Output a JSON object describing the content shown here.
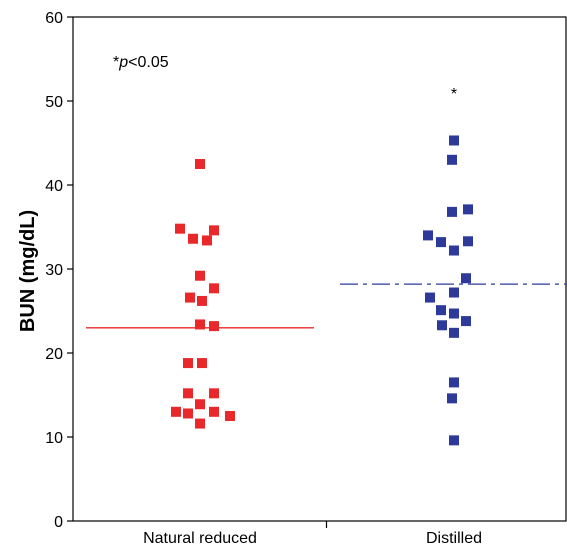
{
  "chart_data": {
    "type": "scatter",
    "ylabel": "BUN (mg/dL)",
    "ylim": [
      0,
      60
    ],
    "yticks": [
      0,
      10,
      20,
      30,
      40,
      50,
      60
    ],
    "categories": [
      "Natural reduced",
      "Distilled"
    ],
    "grid": false,
    "legend": "none",
    "series": [
      {
        "category": "Natural reduced",
        "color": "#e8282a",
        "marker": "square",
        "mean": 23.0,
        "mean_line_style": "solid",
        "values": [
          42.5,
          34.8,
          34.6,
          33.6,
          33.4,
          29.2,
          27.7,
          26.6,
          26.2,
          23.4,
          23.2,
          18.8,
          18.8,
          15.2,
          15.2,
          13.9,
          13.0,
          13.0,
          12.8,
          12.5,
          11.6
        ]
      },
      {
        "category": "Distilled",
        "color": "#2e3a9a",
        "marker": "square",
        "mean": 28.2,
        "mean_line_style": "dashdot",
        "values": [
          45.3,
          43.0,
          37.1,
          36.8,
          34.0,
          33.3,
          33.2,
          32.2,
          28.9,
          27.2,
          26.6,
          25.1,
          24.7,
          23.8,
          23.3,
          22.4,
          16.5,
          14.6,
          9.6
        ]
      }
    ],
    "annotations": {
      "pvalue_prefix": "*",
      "pvalue_p": "p",
      "pvalue_suffix": "<0.05",
      "significance_marker": "*"
    }
  }
}
